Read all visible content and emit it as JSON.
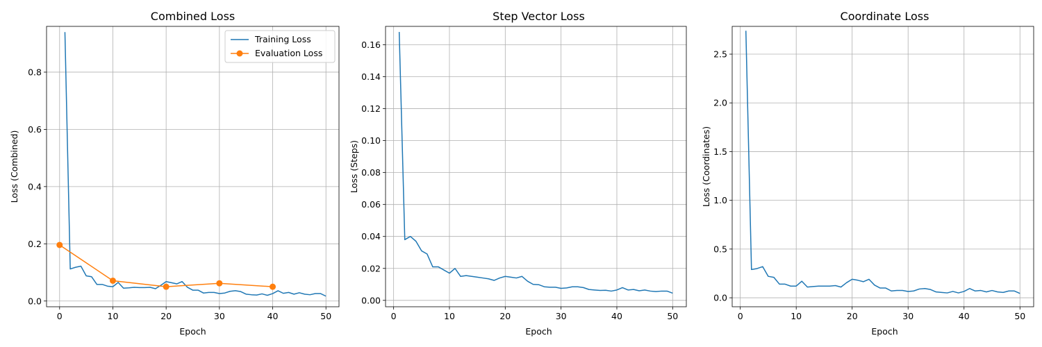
{
  "colors": {
    "training": "#1f77b4",
    "evaluation": "#ff7f0e",
    "grid": "#b0b0b0"
  },
  "chart_data": [
    {
      "type": "line",
      "title": "Combined Loss",
      "xlabel": "Epoch",
      "ylabel": "Loss (Combined)",
      "xlim": [
        -2.45,
        52.45
      ],
      "ylim": [
        -0.02,
        0.96
      ],
      "xticks": [
        0,
        10,
        20,
        30,
        40,
        50
      ],
      "yticks": [
        0.0,
        0.2,
        0.4,
        0.6,
        0.8
      ],
      "ytick_labels": [
        "0.0",
        "0.2",
        "0.4",
        "0.6",
        "0.8"
      ],
      "grid": true,
      "legend": "upper right",
      "series": [
        {
          "name": "Training Loss",
          "color": "#1f77b4",
          "marker": "none",
          "x": [
            1,
            2,
            3,
            4,
            5,
            6,
            7,
            8,
            9,
            10,
            11,
            12,
            13,
            14,
            15,
            16,
            17,
            18,
            19,
            20,
            21,
            22,
            23,
            24,
            25,
            26,
            27,
            28,
            29,
            30,
            31,
            32,
            33,
            34,
            35,
            36,
            37,
            38,
            39,
            40,
            41,
            42,
            43,
            44,
            45,
            46,
            47,
            48,
            49,
            50
          ],
          "y": [
            0.94,
            0.112,
            0.118,
            0.122,
            0.088,
            0.085,
            0.058,
            0.058,
            0.052,
            0.05,
            0.065,
            0.045,
            0.046,
            0.048,
            0.047,
            0.047,
            0.048,
            0.043,
            0.055,
            0.068,
            0.064,
            0.06,
            0.068,
            0.048,
            0.038,
            0.038,
            0.028,
            0.03,
            0.03,
            0.026,
            0.028,
            0.034,
            0.036,
            0.033,
            0.024,
            0.022,
            0.021,
            0.025,
            0.02,
            0.026,
            0.036,
            0.027,
            0.03,
            0.024,
            0.029,
            0.024,
            0.022,
            0.026,
            0.026,
            0.017
          ]
        },
        {
          "name": "Evaluation Loss",
          "color": "#ff7f0e",
          "marker": "circle",
          "x": [
            0,
            10,
            20,
            30,
            40
          ],
          "y": [
            0.196,
            0.071,
            0.05,
            0.062,
            0.05
          ]
        }
      ]
    },
    {
      "type": "line",
      "title": "Step Vector Loss",
      "xlabel": "Epoch",
      "ylabel": "Loss (Steps)",
      "xlim": [
        -1.45,
        52.45
      ],
      "ylim": [
        -0.004,
        0.1715
      ],
      "xticks": [
        0,
        10,
        20,
        30,
        40,
        50
      ],
      "yticks": [
        0.0,
        0.02,
        0.04,
        0.06,
        0.08,
        0.1,
        0.12,
        0.14,
        0.16
      ],
      "ytick_labels": [
        "0.00",
        "0.02",
        "0.04",
        "0.06",
        "0.08",
        "0.10",
        "0.12",
        "0.14",
        "0.16"
      ],
      "grid": true,
      "series": [
        {
          "color": "#1f77b4",
          "marker": "none",
          "x": [
            1,
            2,
            3,
            4,
            5,
            6,
            7,
            8,
            9,
            10,
            11,
            12,
            13,
            14,
            15,
            16,
            17,
            18,
            19,
            20,
            21,
            22,
            23,
            24,
            25,
            26,
            27,
            28,
            29,
            30,
            31,
            32,
            33,
            34,
            35,
            36,
            37,
            38,
            39,
            40,
            41,
            42,
            43,
            44,
            45,
            46,
            47,
            48,
            49,
            50
          ],
          "y": [
            0.168,
            0.038,
            0.04,
            0.037,
            0.031,
            0.029,
            0.021,
            0.021,
            0.019,
            0.017,
            0.02,
            0.015,
            0.0155,
            0.015,
            0.0145,
            0.014,
            0.0135,
            0.0125,
            0.014,
            0.015,
            0.0145,
            0.014,
            0.015,
            0.012,
            0.01,
            0.0098,
            0.0085,
            0.0082,
            0.0082,
            0.0075,
            0.0078,
            0.0085,
            0.0085,
            0.008,
            0.0068,
            0.0065,
            0.0062,
            0.0063,
            0.0058,
            0.0065,
            0.008,
            0.0065,
            0.0068,
            0.006,
            0.0065,
            0.0058,
            0.0055,
            0.0058,
            0.0058,
            0.0045
          ]
        }
      ]
    },
    {
      "type": "line",
      "title": "Coordinate Loss",
      "xlabel": "Epoch",
      "ylabel": "Loss (Coordinates)",
      "xlim": [
        -1.45,
        52.45
      ],
      "ylim": [
        -0.092,
        2.785
      ],
      "xticks": [
        0,
        10,
        20,
        30,
        40,
        50
      ],
      "yticks": [
        0.0,
        0.5,
        1.0,
        1.5,
        2.0,
        2.5
      ],
      "ytick_labels": [
        "0.0",
        "0.5",
        "1.0",
        "1.5",
        "2.0",
        "2.5"
      ],
      "grid": true,
      "series": [
        {
          "color": "#1f77b4",
          "marker": "none",
          "x": [
            1,
            2,
            3,
            4,
            5,
            6,
            7,
            8,
            9,
            10,
            11,
            12,
            13,
            14,
            15,
            16,
            17,
            18,
            19,
            20,
            21,
            22,
            23,
            24,
            25,
            26,
            27,
            28,
            29,
            30,
            31,
            32,
            33,
            34,
            35,
            36,
            37,
            38,
            39,
            40,
            41,
            42,
            43,
            44,
            45,
            46,
            47,
            48,
            49,
            50
          ],
          "y": [
            2.74,
            0.29,
            0.3,
            0.32,
            0.22,
            0.21,
            0.14,
            0.14,
            0.12,
            0.12,
            0.17,
            0.11,
            0.115,
            0.12,
            0.12,
            0.12,
            0.125,
            0.11,
            0.155,
            0.19,
            0.18,
            0.165,
            0.19,
            0.13,
            0.1,
            0.1,
            0.07,
            0.075,
            0.075,
            0.065,
            0.07,
            0.09,
            0.095,
            0.085,
            0.06,
            0.055,
            0.05,
            0.065,
            0.05,
            0.065,
            0.095,
            0.07,
            0.075,
            0.06,
            0.075,
            0.06,
            0.055,
            0.07,
            0.07,
            0.045
          ]
        }
      ]
    }
  ]
}
